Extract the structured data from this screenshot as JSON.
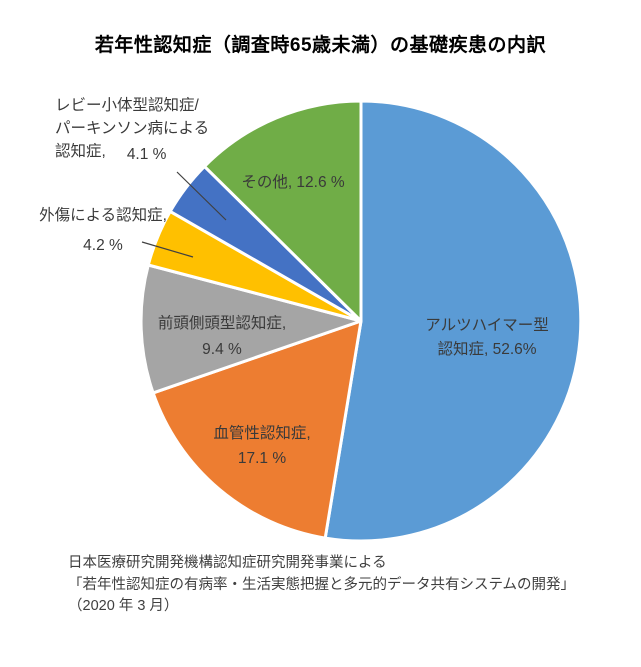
{
  "page": {
    "background": "#ffffff"
  },
  "title": "若年性認知症（調査時65歳未満）の基礎疾患の内訳",
  "chart_data": {
    "type": "pie",
    "title": "若年性認知症（調査時65歳未満）の基礎疾患の内訳",
    "unit": "%",
    "direction": "clockwise",
    "start_angle_deg": 0,
    "legend": "none",
    "slices": [
      {
        "key": "alzheimer",
        "label": "アルツハイマー型認知症",
        "value": 52.6,
        "color": "#5B9BD5",
        "display_lines": [
          "アルツハイマー型",
          "認知症, 52.6%"
        ]
      },
      {
        "key": "vascular",
        "label": "血管性認知症",
        "value": 17.1,
        "color": "#ED7D31",
        "display_lines": [
          "血管性認知症,",
          "17.1 %"
        ]
      },
      {
        "key": "frontotemporal",
        "label": "前頭側頭型認知症",
        "value": 9.4,
        "color": "#A5A5A5",
        "display_lines": [
          "前頭側頭型認知症,",
          "9.4 %"
        ]
      },
      {
        "key": "trauma",
        "label": "外傷による認知症",
        "value": 4.2,
        "color": "#FFC000",
        "display_lines": [
          "外傷による認知症,",
          "4.2 %"
        ]
      },
      {
        "key": "lewy_parkinson",
        "label": "レビー小体型認知症/パーキンソン病による認知症",
        "value": 4.1,
        "color": "#4472C4",
        "display_lines": [
          "レビー小体型認知症/",
          "パーキンソン病による",
          "認知症,",
          "4.1 %"
        ]
      },
      {
        "key": "other",
        "label": "その他",
        "value": 12.6,
        "color": "#70AD47",
        "display_lines": [
          "その他, 12.6 %"
        ]
      }
    ]
  },
  "source_note": {
    "line1": "日本医療研究開発機構認知症研究開発事業による",
    "line2": "「若年性認知症の有病率・生活実態把握と多元的データ共有システムの開発」",
    "line3": "（2020 年 3 月）"
  }
}
